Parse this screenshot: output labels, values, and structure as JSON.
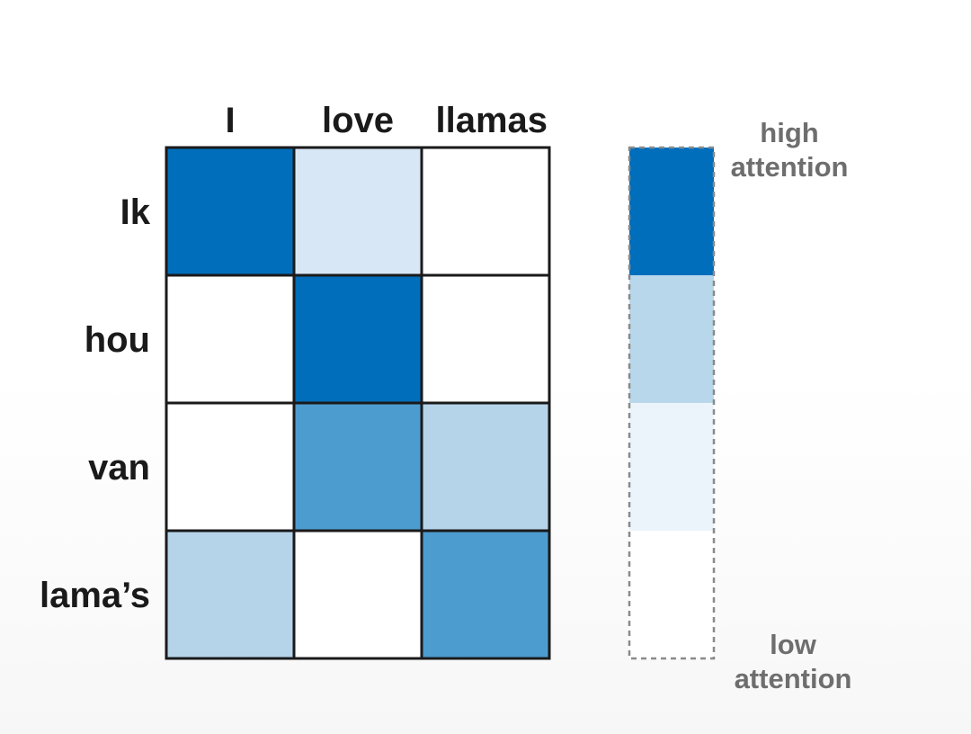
{
  "chart_data": {
    "type": "heatmap",
    "title": "",
    "columns": [
      "I",
      "love",
      "llamas"
    ],
    "rows": [
      "Ik",
      "hou",
      "van",
      "lama’s"
    ],
    "values": [
      [
        4,
        1,
        0
      ],
      [
        0,
        4,
        0
      ],
      [
        0,
        3,
        2
      ],
      [
        2,
        0,
        3
      ]
    ],
    "level_range": [
      0,
      4
    ],
    "colors": {
      "0": "#ffffff",
      "1": "#d8e7f5",
      "2": "#b5d4ea",
      "3": "#4d9cd0",
      "4": "#006ebb"
    },
    "grid_color": "#1a1a1a",
    "legend": {
      "position": "right",
      "high_label": "high\nattention",
      "low_label": "low\nattention",
      "levels": [
        "#006ebb",
        "#b8d7eb",
        "#ecf4fb",
        "#ffffff"
      ],
      "border": "dashed #8a8a8a"
    }
  }
}
